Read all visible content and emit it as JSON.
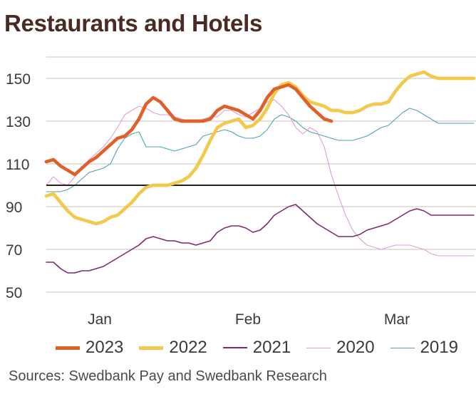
{
  "chart_data": {
    "type": "line",
    "title": "Restaurants and Hotels",
    "xlabel": "",
    "ylabel": "",
    "ylim": [
      50,
      160
    ],
    "yticks": [
      50,
      70,
      90,
      110,
      130,
      150
    ],
    "reference_line": 100,
    "grid": true,
    "x_tick_labels": [
      {
        "label": "Jan",
        "index": 7.5
      },
      {
        "label": "Feb",
        "index": 28.3
      },
      {
        "label": "Mar",
        "index": 49.2
      }
    ],
    "x_count": 61,
    "legend_position": "bottom",
    "series": [
      {
        "name": "2023",
        "color": "#e0602a",
        "values": [
          111,
          112,
          109,
          107,
          105,
          108,
          111,
          113,
          116,
          119,
          122,
          123,
          126,
          131,
          138,
          141,
          139,
          135,
          131,
          130,
          130,
          130,
          130,
          131,
          135,
          137,
          136,
          135,
          133,
          131,
          135,
          141,
          145,
          146,
          147,
          145,
          141,
          137,
          134,
          131,
          130,
          null,
          null,
          null,
          null,
          null,
          null,
          null,
          null,
          null,
          null,
          null,
          null,
          null,
          null,
          null,
          null,
          null,
          null,
          null,
          null
        ]
      },
      {
        "name": "2022",
        "color": "#f2c94c",
        "values": [
          95,
          96,
          92,
          88,
          85,
          84,
          83,
          82,
          83,
          85,
          86,
          89,
          92,
          96,
          99,
          100,
          100,
          100,
          101,
          102,
          104,
          108,
          114,
          121,
          127,
          129,
          130,
          131,
          127,
          128,
          131,
          136,
          143,
          147,
          148,
          146,
          142,
          139,
          138,
          137,
          135,
          135,
          134,
          134,
          135,
          137,
          138,
          138,
          139,
          144,
          148,
          151,
          152,
          153,
          151,
          150,
          150,
          150,
          150,
          150,
          150
        ]
      },
      {
        "name": "2021",
        "color": "#7b2c6f",
        "values": [
          64,
          64,
          61,
          59,
          59,
          60,
          60,
          61,
          62,
          64,
          66,
          68,
          70,
          72,
          75,
          76,
          75,
          74,
          74,
          73,
          73,
          72,
          73,
          74,
          78,
          80,
          81,
          81,
          80,
          78,
          79,
          82,
          86,
          88,
          90,
          91,
          88,
          85,
          82,
          80,
          78,
          76,
          76,
          76,
          77,
          79,
          80,
          81,
          82,
          84,
          86,
          88,
          89,
          88,
          86,
          86,
          86,
          86,
          86,
          86,
          86
        ]
      },
      {
        "name": "2020",
        "color": "#e39ad8",
        "values": [
          100,
          104,
          101,
          100,
          104,
          108,
          112,
          115,
          118,
          122,
          127,
          133,
          135,
          137,
          136,
          134,
          133,
          133,
          132,
          131,
          130,
          130,
          131,
          132,
          132,
          135,
          135,
          133,
          132,
          134,
          136,
          139,
          140,
          137,
          133,
          127,
          124,
          127,
          125,
          118,
          105,
          95,
          86,
          79,
          75,
          72,
          71,
          70,
          71,
          72,
          72,
          72,
          71,
          70,
          68,
          67,
          67,
          67,
          67,
          67,
          67
        ]
      },
      {
        "name": "2019",
        "color": "#4ea3b5",
        "values": [
          97,
          97,
          97,
          98,
          100,
          103,
          106,
          107,
          108,
          110,
          117,
          122,
          124,
          125,
          118,
          118,
          118,
          117,
          116,
          117,
          118,
          119,
          123,
          124,
          125,
          126,
          125,
          123,
          122,
          122,
          123,
          126,
          131,
          133,
          132,
          130,
          127,
          125,
          124,
          123,
          122,
          121,
          121,
          121,
          122,
          123,
          125,
          127,
          128,
          131,
          134,
          136,
          135,
          133,
          131,
          129,
          129,
          129,
          129,
          129,
          129
        ]
      }
    ]
  },
  "legend": [
    "2023",
    "2022",
    "2021",
    "2020",
    "2019"
  ],
  "source": "Sources: Swedbank Pay and Swedbank Research"
}
